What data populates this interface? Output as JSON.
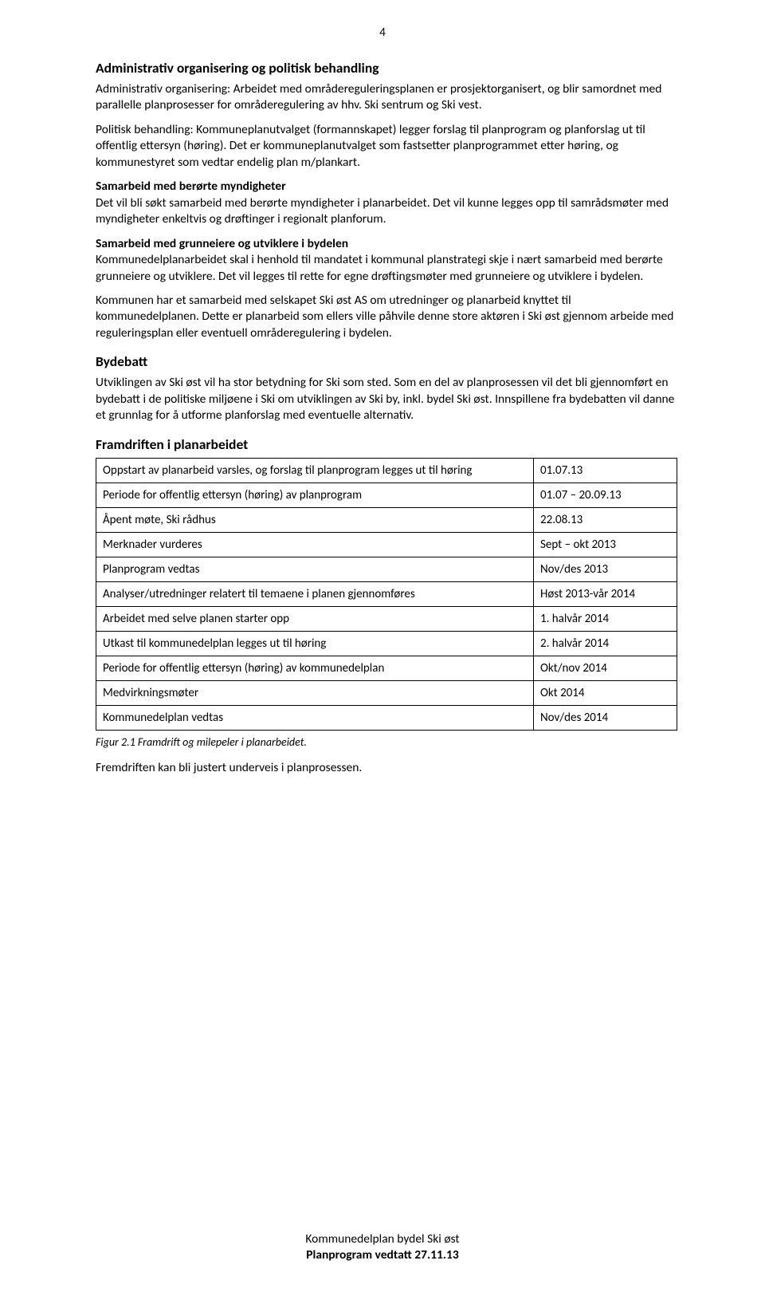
{
  "page_number": "4",
  "headings": {
    "h1": "Administrativ organisering og politisk behandling",
    "bydebatt": "Bydebatt",
    "framdriften": "Framdriften i planarbeidet",
    "samarbeid_mynd": "Samarbeid med berørte myndigheter",
    "samarbeid_grunn": "Samarbeid med grunneiere og utviklere i bydelen"
  },
  "paras": {
    "p1": "Administrativ organisering: Arbeidet med områdereguleringsplanen er prosjektorganisert, og blir samordnet med parallelle planprosesser for områderegulering av hhv. Ski sentrum og Ski vest.",
    "p2": "Politisk behandling: Kommuneplanutvalget (formannskapet) legger forslag til planprogram og planforslag ut til offentlig ettersyn (høring). Det er kommuneplanutvalget som fastsetter planprogrammet etter høring, og kommunestyret som vedtar endelig plan m/plankart.",
    "p3": "Det vil bli søkt samarbeid med berørte myndigheter i planarbeidet. Det vil kunne legges opp til samrådsmøter med myndigheter enkeltvis og drøftinger i regionalt planforum.",
    "p4": "Kommunedelplanarbeidet skal i henhold til mandatet i kommunal planstrategi skje i nært samarbeid med berørte grunneiere og utviklere. Det vil legges til rette for egne drøftingsmøter med grunneiere og utviklere i bydelen.",
    "p5": "Kommunen har et samarbeid med selskapet Ski øst AS om utredninger og planarbeid knyttet til kommunedelplanen. Dette er planarbeid som ellers ville påhvile denne store aktøren i Ski øst gjennom arbeide med reguleringsplan eller eventuell områderegulering i bydelen.",
    "p6": "Utviklingen av Ski øst vil ha stor betydning for Ski som sted. Som en del av planprosessen vil det bli  gjennomført en bydebatt i de politiske miljøene i Ski om utviklingen av Ski by, inkl. bydel Ski øst. Innspillene fra bydebatten vil danne et grunnlag for å utforme planforslag med eventuelle alternativ.",
    "p7": "Fremdriften kan bli justert underveis i planprosessen."
  },
  "table": {
    "rows": [
      [
        "Oppstart av planarbeid varsles, og forslag til planprogram legges ut til høring",
        "01.07.13"
      ],
      [
        "Periode for offentlig ettersyn (høring) av planprogram",
        "01.07 – 20.09.13"
      ],
      [
        "Åpent møte, Ski rådhus",
        "22.08.13"
      ],
      [
        "Merknader vurderes",
        "Sept – okt 2013"
      ],
      [
        "Planprogram vedtas",
        "Nov/des 2013"
      ],
      [
        "Analyser/utredninger relatert til temaene i planen gjennomføres",
        "Høst 2013-vår 2014"
      ],
      [
        "Arbeidet med selve planen starter opp",
        "1. halvår 2014"
      ],
      [
        "Utkast til kommunedelplan legges ut til høring",
        "2. halvår 2014"
      ],
      [
        "Periode for offentlig ettersyn (høring) av kommunedelplan",
        "Okt/nov 2014"
      ],
      [
        "Medvirkningsmøter",
        "Okt  2014"
      ],
      [
        "Kommunedelplan vedtas",
        "Nov/des 2014"
      ]
    ]
  },
  "caption": "Figur 2.1 Framdrift og milepeler i planarbeidet.",
  "footer": {
    "line1": "Kommunedelplan bydel Ski øst",
    "line2": "Planprogram vedtatt 27.11.13"
  }
}
